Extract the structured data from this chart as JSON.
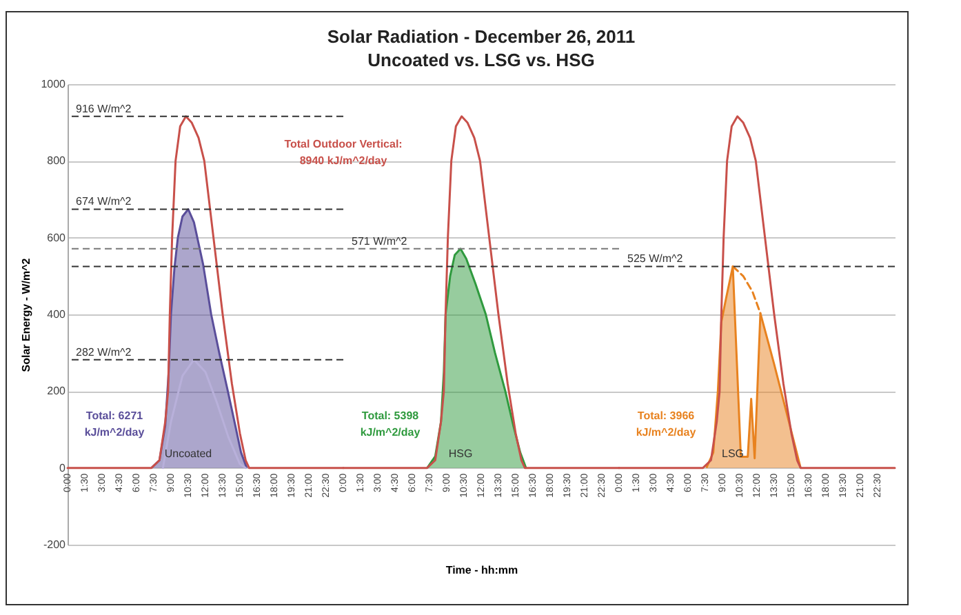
{
  "chart_data": [
    {
      "type": "area",
      "ylabel": "Solar Energy - W/m^2",
      "xlim": [
        0,
        24
      ],
      "ylim": [
        -200,
        1000
      ],
      "yticks": [
        -200,
        0,
        200,
        400,
        600,
        800,
        1000
      ],
      "grid": "y",
      "marker": "none",
      "xticks": [
        {
          "value": 0,
          "label": "0:00"
        },
        {
          "value": 1.5,
          "label": "1:30"
        },
        {
          "value": 3,
          "label": "3:00"
        },
        {
          "value": 4.5,
          "label": "4:30"
        },
        {
          "value": 6,
          "label": "6:00"
        },
        {
          "value": 7.5,
          "label": "7:30"
        },
        {
          "value": 9,
          "label": "9:00"
        },
        {
          "value": 10.5,
          "label": "10:30"
        },
        {
          "value": 12,
          "label": "12:00"
        },
        {
          "value": 13.5,
          "label": "13:30"
        },
        {
          "value": 15,
          "label": "15:00"
        },
        {
          "value": 16.5,
          "label": "16:30"
        },
        {
          "value": 18,
          "label": "18:00"
        },
        {
          "value": 19.5,
          "label": "19:30"
        },
        {
          "value": 21,
          "label": "21:00"
        },
        {
          "value": 22.5,
          "label": "22:30"
        }
      ],
      "series": [
        {
          "name": "Uncoated",
          "color": "#5a4e9a",
          "x": [
            7.3,
            8.0,
            8.5,
            8.8,
            9.0,
            9.3,
            9.6,
            10.0,
            10.5,
            11.0,
            11.8,
            12.5,
            13.2,
            13.95,
            14.6,
            15.1,
            15.6
          ],
          "values": [
            0,
            20,
            110,
            250,
            400,
            520,
            600,
            655,
            674,
            640,
            530,
            400,
            300,
            200,
            110,
            40,
            0
          ]
        },
        {
          "type": "line",
          "color": "#b8b0da",
          "x": [
            8.3,
            9.0,
            10.0,
            11.0,
            12.0,
            13.0,
            14.0,
            15.0,
            15.5
          ],
          "values": [
            0,
            120,
            240,
            282,
            250,
            170,
            80,
            10,
            0
          ]
        },
        {
          "type": "line",
          "color": "#c8504a",
          "x": [
            0,
            7.3,
            8.0,
            8.5,
            8.75,
            8.9,
            9.1,
            9.4,
            9.8,
            10.3,
            10.8,
            11.4,
            11.9,
            12.7,
            13.5,
            14.3,
            15.0,
            15.5,
            15.8,
            24
          ],
          "values": [
            0,
            0,
            20,
            120,
            200,
            400,
            600,
            800,
            890,
            916,
            900,
            860,
            800,
            600,
            400,
            220,
            90,
            20,
            0,
            0
          ]
        }
      ],
      "ref_lines": [
        {
          "axis": "y",
          "value": 916,
          "label": "916 W/m^2",
          "color": "#333333",
          "line_style": "dashed"
        },
        {
          "axis": "y",
          "value": 674,
          "label": "674 W/m^2",
          "color": "#333333",
          "line_style": "dashed"
        },
        {
          "axis": "y",
          "value": 571,
          "color": "#777777",
          "line_style": "dashed"
        },
        {
          "axis": "y",
          "value": 525,
          "color": "#333333",
          "line_style": "dashed"
        },
        {
          "axis": "y",
          "value": 282,
          "label": "282 W/m^2",
          "color": "#333333",
          "line_style": "dashed"
        }
      ],
      "annotations": [
        "Total: 6271\nkJ/m^2/day"
      ]
    },
    {
      "type": "area",
      "title": "Solar Radiation - December 26, 2011",
      "subtitle": "Uncoated vs. LSG vs. HSG",
      "xlabel": "Time - hh:mm",
      "tick_labels": "x",
      "xlim": [
        0,
        24
      ],
      "ylim": [
        -200,
        1000
      ],
      "yticks": [
        -200,
        0,
        200,
        400,
        600,
        800,
        1000
      ],
      "grid": "y",
      "marker": "none",
      "xticks": [
        {
          "value": 0,
          "label": "0:00"
        },
        {
          "value": 1.5,
          "label": "1:30"
        },
        {
          "value": 3,
          "label": "3:00"
        },
        {
          "value": 4.5,
          "label": "4:30"
        },
        {
          "value": 6,
          "label": "6:00"
        },
        {
          "value": 7.5,
          "label": "7:30"
        },
        {
          "value": 9,
          "label": "9:00"
        },
        {
          "value": 10.5,
          "label": "10:30"
        },
        {
          "value": 12,
          "label": "12:00"
        },
        {
          "value": 13.5,
          "label": "13:30"
        },
        {
          "value": 15,
          "label": "15:00"
        },
        {
          "value": 16.5,
          "label": "16:30"
        },
        {
          "value": 18,
          "label": "18:00"
        },
        {
          "value": 19.5,
          "label": "19:30"
        },
        {
          "value": 21,
          "label": "21:00"
        },
        {
          "value": 22.5,
          "label": "22:30"
        }
      ],
      "series": [
        {
          "name": "HSG",
          "color": "#2f9a3e",
          "x": [
            7.3,
            8.0,
            8.5,
            8.75,
            8.9,
            9.3,
            9.7,
            10.2,
            10.7,
            11.5,
            12.4,
            13.2,
            14.1,
            14.8,
            15.4,
            15.9
          ],
          "values": [
            0,
            30,
            120,
            250,
            400,
            500,
            555,
            571,
            545,
            480,
            400,
            300,
            200,
            110,
            40,
            0
          ]
        },
        {
          "type": "line",
          "color": "#c8504a",
          "x": [
            0,
            7.3,
            8.0,
            8.5,
            8.75,
            8.9,
            9.1,
            9.4,
            9.8,
            10.3,
            10.8,
            11.4,
            11.9,
            12.7,
            13.5,
            14.3,
            15.0,
            15.5,
            15.8,
            24
          ],
          "values": [
            0,
            0,
            20,
            120,
            200,
            400,
            600,
            800,
            890,
            916,
            900,
            860,
            800,
            600,
            400,
            220,
            90,
            20,
            0,
            0
          ]
        }
      ],
      "ref_lines": [
        {
          "axis": "y",
          "value": 571,
          "label": "571 W/m^2",
          "color": "#777777",
          "line_style": "dashed"
        },
        {
          "axis": "y",
          "value": 525,
          "color": "#333333",
          "line_style": "dashed"
        }
      ],
      "annotations": [
        "Total Outdoor Vertical:\n8940 kJ/m^2/day",
        "Total: 5398\nkJ/m^2/day"
      ]
    },
    {
      "type": "area",
      "tick_labels": "x",
      "xlim": [
        0,
        24
      ],
      "ylim": [
        -200,
        1000
      ],
      "yticks": [
        -200,
        0,
        200,
        400,
        600,
        800,
        1000
      ],
      "grid": "y",
      "marker": "none",
      "xticks": [
        {
          "value": 0,
          "label": "0:00"
        },
        {
          "value": 1.5,
          "label": "1:30"
        },
        {
          "value": 3,
          "label": "3:00"
        },
        {
          "value": 4.5,
          "label": "4:30"
        },
        {
          "value": 6,
          "label": "6:00"
        },
        {
          "value": 7.5,
          "label": "7:30"
        },
        {
          "value": 9,
          "label": "9:00"
        },
        {
          "value": 10.5,
          "label": "10:30"
        },
        {
          "value": 12,
          "label": "12:00"
        },
        {
          "value": 13.5,
          "label": "13:30"
        },
        {
          "value": 15,
          "label": "15:00"
        },
        {
          "value": 16.5,
          "label": "16:30"
        },
        {
          "value": 18,
          "label": "18:00"
        },
        {
          "value": 19.5,
          "label": "19:30"
        },
        {
          "value": 21,
          "label": "21:00"
        },
        {
          "value": 22.5,
          "label": "22:30"
        }
      ],
      "series": [
        {
          "name": "LSG",
          "color": "#e8821f",
          "x": [
            7.6,
            8.2,
            8.6,
            8.9,
            9.3,
            9.9,
            10.6,
            11.2,
            11.5,
            11.8,
            12.3,
            13.5,
            14.7,
            15.8
          ],
          "values": [
            0,
            40,
            200,
            380,
            440,
            525,
            29,
            29,
            180,
            25,
            403,
            270,
            130,
            0
          ]
        },
        {
          "type": "line",
          "color": "#e8821f",
          "line_style": "dashed",
          "x": [
            9.9,
            10.8,
            11.6,
            12.3
          ],
          "values": [
            525,
            500,
            460,
            403
          ]
        },
        {
          "type": "line",
          "color": "#c8504a",
          "x": [
            0,
            7.3,
            8.0,
            8.5,
            8.75,
            8.9,
            9.1,
            9.4,
            9.8,
            10.3,
            10.8,
            11.4,
            11.9,
            12.7,
            13.5,
            14.3,
            15.0,
            15.5,
            15.8,
            24
          ],
          "values": [
            0,
            0,
            20,
            120,
            200,
            400,
            600,
            800,
            890,
            916,
            900,
            860,
            800,
            600,
            400,
            220,
            90,
            20,
            0,
            0
          ]
        }
      ],
      "ref_lines": [
        {
          "axis": "y",
          "value": 525,
          "label": "525 W/m^2",
          "color": "#333333",
          "line_style": "dashed"
        }
      ],
      "annotations": [
        "Total: 3966\nkJ/m^2/day"
      ]
    }
  ]
}
